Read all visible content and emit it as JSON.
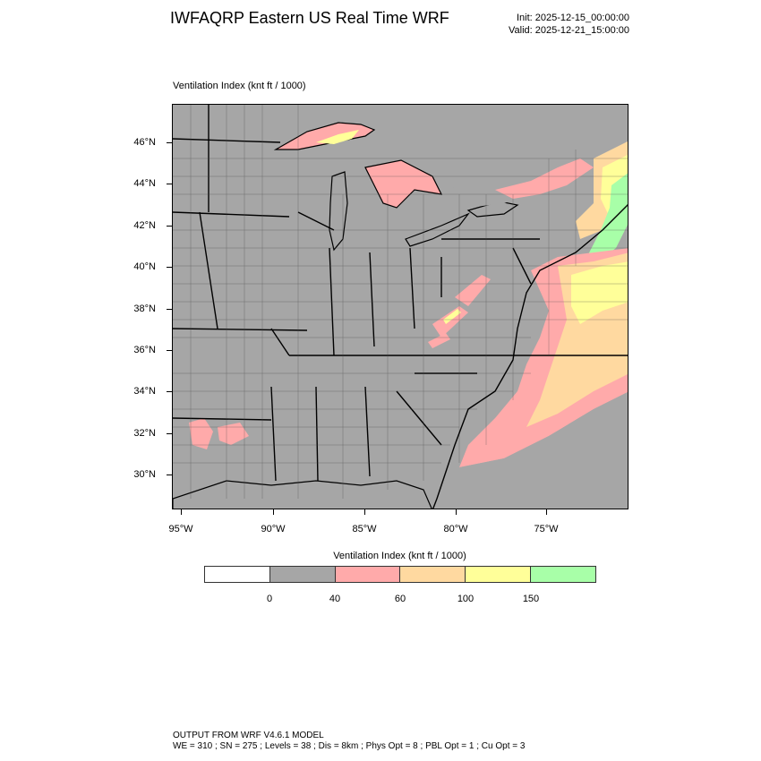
{
  "header": {
    "title": "IWFAQRP Eastern US Real Time WRF",
    "init": "Init: 2025-12-15_00:00:00",
    "valid": "Valid: 2025-12-21_15:00:00"
  },
  "field_label": "Ventilation Index   (knt ft / 1000)",
  "map": {
    "lat_labels": [
      "46°N",
      "44°N",
      "42°N",
      "40°N",
      "38°N",
      "36°N",
      "34°N",
      "32°N",
      "30°N"
    ],
    "lon_labels": [
      "95°W",
      "90°W",
      "85°W",
      "80°W",
      "75°W"
    ],
    "colors": {
      "land": "#a6a6a6",
      "lake": "#a6a6a6",
      "v40_60": "#ffaaaa",
      "v60_100": "#ffd9a0",
      "v100_150": "#ffff99",
      "v150_plus": "#a8ffa8",
      "border": "#000000"
    }
  },
  "colorbar": {
    "title": "Ventilation Index  (knt ft / 1000)",
    "colors": [
      "#ffffff",
      "#a6a6a6",
      "#ffaaaa",
      "#ffd9a0",
      "#ffff99",
      "#a8ffa8"
    ],
    "labels": [
      "0",
      "40",
      "60",
      "100",
      "150"
    ]
  },
  "footer": {
    "line1": "OUTPUT FROM WRF V4.6.1 MODEL",
    "line2": "WE = 310 ; SN = 275 ; Levels = 38 ; Dis = 8km ; Phys Opt = 8 ; PBL Opt = 1 ; Cu Opt = 3"
  }
}
